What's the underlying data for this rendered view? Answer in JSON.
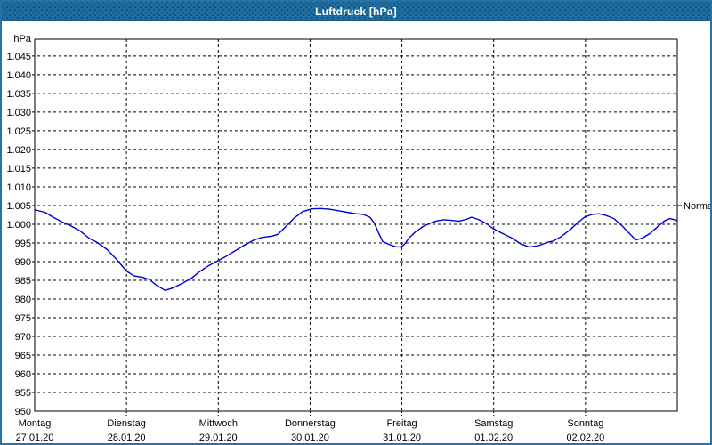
{
  "window": {
    "title": "Luftdruck [hPa]"
  },
  "colors": {
    "titlebar_bg": "#1f6ea1",
    "window_border": "#2573a7",
    "title_text": "#ffffff",
    "line_color": "#0000cc",
    "grid_color": "#000000",
    "plot_bg": "#ffffff",
    "text_color": "#000000"
  },
  "chart_data": {
    "type": "line",
    "title": "Luftdruck [hPa]",
    "ylabel": "hPa",
    "xlabel": "",
    "grid": true,
    "legend_position": "none",
    "y_axis": {
      "unit_label": "hPa",
      "plot_min": 950,
      "plot_max": 1049.5,
      "tick_step": 5,
      "ticks": [
        {
          "value": 1045,
          "label": "1.045"
        },
        {
          "value": 1040,
          "label": "1.040"
        },
        {
          "value": 1035,
          "label": "1.035"
        },
        {
          "value": 1030,
          "label": "1.030"
        },
        {
          "value": 1025,
          "label": "1.025"
        },
        {
          "value": 1020,
          "label": "1.020"
        },
        {
          "value": 1015,
          "label": "1.015"
        },
        {
          "value": 1010,
          "label": "1.010"
        },
        {
          "value": 1005,
          "label": "1.005"
        },
        {
          "value": 1000,
          "label": "1.000"
        },
        {
          "value": 995,
          "label": "995"
        },
        {
          "value": 990,
          "label": "990"
        },
        {
          "value": 985,
          "label": "985"
        },
        {
          "value": 980,
          "label": "980"
        },
        {
          "value": 975,
          "label": "975"
        },
        {
          "value": 970,
          "label": "970"
        },
        {
          "value": 965,
          "label": "965"
        },
        {
          "value": 960,
          "label": "960"
        },
        {
          "value": 955,
          "label": "955"
        },
        {
          "value": 950,
          "label": "950"
        }
      ]
    },
    "x_axis": {
      "range_days": 7,
      "days": [
        {
          "weekday": "Montag",
          "date": "27.01.20"
        },
        {
          "weekday": "Dienstag",
          "date": "28.01.20"
        },
        {
          "weekday": "Mittwoch",
          "date": "29.01.20"
        },
        {
          "weekday": "Donnerstag",
          "date": "30.01.20"
        },
        {
          "weekday": "Freitag",
          "date": "31.01.20"
        },
        {
          "weekday": "Samstag",
          "date": "01.02.20"
        },
        {
          "weekday": "Sonntag",
          "date": "02.02.20"
        }
      ]
    },
    "reference_line": {
      "label": "Normal",
      "value": 1005
    },
    "series": [
      {
        "name": "Luftdruck",
        "unit": "hPa",
        "color": "#0000cc",
        "points_day_hpa": [
          [
            0.01,
            1003.8
          ],
          [
            0.11,
            1003.2
          ],
          [
            0.2,
            1001.9
          ],
          [
            0.3,
            1000.6
          ],
          [
            0.4,
            999.5
          ],
          [
            0.49,
            998.3
          ],
          [
            0.59,
            996.3
          ],
          [
            0.69,
            995.0
          ],
          [
            0.79,
            993.2
          ],
          [
            0.88,
            990.9
          ],
          [
            1.0,
            987.5
          ],
          [
            1.08,
            986.2
          ],
          [
            1.17,
            985.8
          ],
          [
            1.25,
            985.2
          ],
          [
            1.32,
            983.8
          ],
          [
            1.42,
            982.3
          ],
          [
            1.51,
            983.0
          ],
          [
            1.61,
            984.2
          ],
          [
            1.71,
            985.6
          ],
          [
            1.8,
            987.4
          ],
          [
            1.9,
            989.0
          ],
          [
            2.0,
            990.3
          ],
          [
            2.09,
            991.5
          ],
          [
            2.19,
            993.0
          ],
          [
            2.29,
            994.5
          ],
          [
            2.39,
            995.8
          ],
          [
            2.48,
            996.5
          ],
          [
            2.58,
            996.8
          ],
          [
            2.65,
            997.3
          ],
          [
            2.72,
            999.0
          ],
          [
            2.82,
            1001.5
          ],
          [
            2.92,
            1003.4
          ],
          [
            3.02,
            1004.1
          ],
          [
            3.11,
            1004.2
          ],
          [
            3.21,
            1004.0
          ],
          [
            3.31,
            1003.6
          ],
          [
            3.4,
            1003.2
          ],
          [
            3.5,
            1002.8
          ],
          [
            3.58,
            1002.6
          ],
          [
            3.65,
            1001.9
          ],
          [
            3.7,
            1000.3
          ],
          [
            3.74,
            998.0
          ],
          [
            3.79,
            995.4
          ],
          [
            3.86,
            994.6
          ],
          [
            3.93,
            994.0
          ],
          [
            3.99,
            993.9
          ],
          [
            4.03,
            994.7
          ],
          [
            4.08,
            996.4
          ],
          [
            4.15,
            998.0
          ],
          [
            4.23,
            999.4
          ],
          [
            4.31,
            1000.3
          ],
          [
            4.38,
            1000.9
          ],
          [
            4.46,
            1001.2
          ],
          [
            4.55,
            1001.0
          ],
          [
            4.62,
            1000.8
          ],
          [
            4.7,
            1001.3
          ],
          [
            4.76,
            1001.9
          ],
          [
            4.84,
            1001.2
          ],
          [
            4.92,
            1000.2
          ],
          [
            4.99,
            998.9
          ],
          [
            5.09,
            997.6
          ],
          [
            5.2,
            996.3
          ],
          [
            5.29,
            994.8
          ],
          [
            5.39,
            993.9
          ],
          [
            5.49,
            994.3
          ],
          [
            5.59,
            995.2
          ],
          [
            5.65,
            995.5
          ],
          [
            5.73,
            996.6
          ],
          [
            5.83,
            998.5
          ],
          [
            5.92,
            1000.5
          ],
          [
            5.99,
            1001.9
          ],
          [
            6.07,
            1002.6
          ],
          [
            6.14,
            1002.8
          ],
          [
            6.22,
            1002.4
          ],
          [
            6.31,
            1001.5
          ],
          [
            6.39,
            999.8
          ],
          [
            6.48,
            997.5
          ],
          [
            6.55,
            995.8
          ],
          [
            6.62,
            996.3
          ],
          [
            6.7,
            997.5
          ],
          [
            6.78,
            999.2
          ],
          [
            6.86,
            1000.9
          ],
          [
            6.92,
            1001.5
          ],
          [
            6.97,
            1001.2
          ],
          [
            7.0,
            1000.9
          ]
        ]
      }
    ]
  }
}
